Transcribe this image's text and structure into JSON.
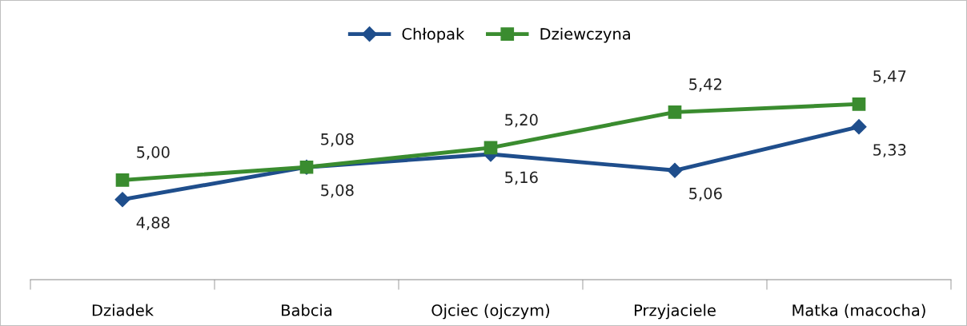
{
  "chart_data": {
    "type": "line",
    "categories": [
      "Dziadek",
      "Babcia",
      "Ojciec (ojczym)",
      "Przyjaciele",
      "Matka (macocha)"
    ],
    "series": [
      {
        "name": "Chłopak",
        "color": "#1f4e8c",
        "marker": "diamond",
        "values": [
          4.88,
          5.08,
          5.16,
          5.06,
          5.33
        ],
        "value_labels": [
          "4,88",
          "5,08",
          "5,16",
          "5,06",
          "5,33"
        ]
      },
      {
        "name": "Dziewczyna",
        "color": "#3a8c2f",
        "marker": "square",
        "values": [
          5.0,
          5.08,
          5.2,
          5.42,
          5.47
        ],
        "value_labels": [
          "5,00",
          "5,08",
          "5,20",
          "5,42",
          "5,47"
        ]
      }
    ],
    "grid": false,
    "legend": "top",
    "line_style": "solid"
  }
}
